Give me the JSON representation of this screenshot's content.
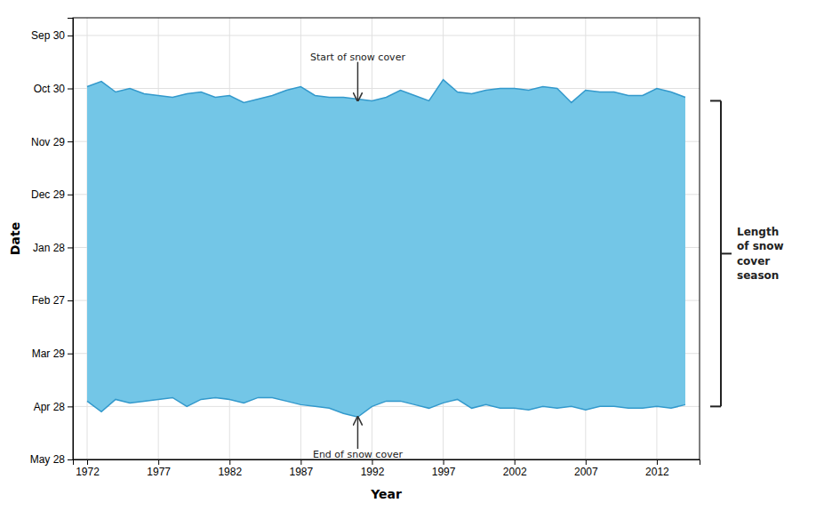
{
  "chart_data": {
    "type": "range_area",
    "x": [
      1972,
      1973,
      1974,
      1975,
      1976,
      1977,
      1978,
      1979,
      1980,
      1981,
      1982,
      1983,
      1984,
      1985,
      1986,
      1987,
      1988,
      1989,
      1990,
      1991,
      1992,
      1993,
      1994,
      1995,
      1996,
      1997,
      1998,
      1999,
      2000,
      2001,
      2002,
      2003,
      2004,
      2005,
      2006,
      2007,
      2008,
      2009,
      2010,
      2011,
      2012,
      2013,
      2014
    ],
    "series": [
      {
        "color": "#3399CC",
        "values": [
          302,
          299,
          305,
          303,
          306,
          307,
          308,
          306,
          305,
          308,
          307,
          311,
          309,
          307,
          304,
          302,
          307,
          308,
          308,
          309,
          310,
          308,
          304,
          307,
          310,
          298,
          305,
          306,
          304,
          303,
          303,
          304,
          302,
          303,
          311,
          304,
          305,
          305,
          307,
          307,
          303,
          305,
          308
        ]
      },
      {
        "color": "#3399CC",
        "values": [
          480,
          486,
          479,
          481,
          480,
          479,
          478,
          483,
          479,
          478,
          479,
          481,
          478,
          478,
          480,
          482,
          483,
          484,
          487,
          489,
          483,
          480,
          480,
          482,
          484,
          481,
          479,
          484,
          482,
          484,
          484,
          485,
          483,
          484,
          483,
          485,
          483,
          483,
          484,
          484,
          483,
          484,
          482
        ]
      }
    ],
    "color": "#73C6E7",
    "xlabel": "Year",
    "ylabel": "Date",
    "xlim": [
      1971,
      2015
    ],
    "xticks": [
      1972,
      1977,
      1982,
      1987,
      1992,
      1997,
      2002,
      2007,
      2012
    ],
    "ylim": [
      513,
      263
    ],
    "yticks": [
      {
        "value": 273,
        "label": "Sep 30"
      },
      {
        "value": 303,
        "label": "Oct 30"
      },
      {
        "value": 333,
        "label": "Nov 29"
      },
      {
        "value": 363,
        "label": "Dec 29"
      },
      {
        "value": 393,
        "label": "Jan 28"
      },
      {
        "value": 423,
        "label": "Feb 27"
      },
      {
        "value": 453,
        "label": "Mar 29"
      },
      {
        "value": 483,
        "label": "Apr 28"
      },
      {
        "value": 513,
        "label": "May 28"
      }
    ],
    "grid": true,
    "annotations": [
      {
        "text": "Start of snow cover",
        "xy": [
          1991,
          310
        ],
        "xytext": [
          1991,
          288
        ]
      },
      {
        "text": "End of snow cover",
        "xy": [
          1991,
          489
        ],
        "xytext": [
          1991,
          507
        ]
      },
      {
        "text": "Length\nof snow\ncover\nseason",
        "y_range": [
          310,
          483
        ]
      }
    ]
  }
}
